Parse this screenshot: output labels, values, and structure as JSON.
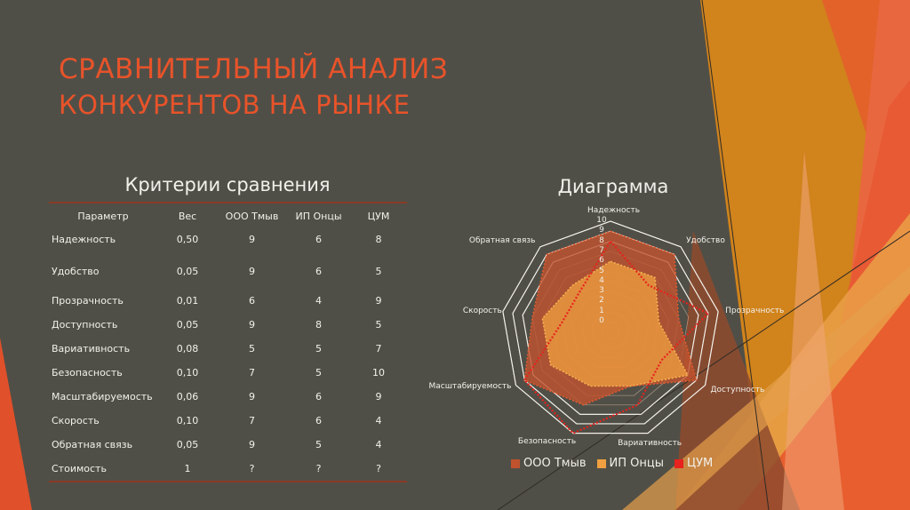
{
  "slide": {
    "title_line1": "СРАВНИТЕЛЬНЫЙ АНАЛИЗ",
    "title_line2": "КОНКУРЕНТОВ НА РЫНКЕ",
    "colors": {
      "background": "#504f47",
      "accent": "#e8532a",
      "rule": "#8a3a26"
    }
  },
  "table": {
    "heading": "Критерии сравнения",
    "columns": [
      "Параметр",
      "Вес",
      "ООО Тмыв",
      "ИП Онцы",
      "ЦУМ"
    ],
    "rows": [
      [
        "Надежность",
        "0,50",
        "9",
        "6",
        "8"
      ],
      [
        "Удобство",
        "0,05",
        "9",
        "6",
        "5"
      ],
      [
        "Прозрачность",
        "0,01",
        "6",
        "4",
        "9"
      ],
      [
        "Доступность",
        "0,05",
        "9",
        "8",
        "5"
      ],
      [
        "Вариативность",
        "0,08",
        "5",
        "5",
        "7"
      ],
      [
        "Безопасность",
        "0,10",
        "7",
        "5",
        "10"
      ],
      [
        "Масштабируемость",
        "0,06",
        "9",
        "6",
        "9"
      ],
      [
        "Скорость",
        "0,10",
        "7",
        "6",
        "4"
      ],
      [
        "Обратная связь",
        "0,05",
        "9",
        "5",
        "4"
      ],
      [
        "Стоимость",
        "1",
        "?",
        "?",
        "?"
      ]
    ]
  },
  "chart": {
    "heading": "Диаграмма"
  },
  "chart_data": {
    "type": "radar",
    "title": "Диаграмма",
    "categories": [
      "Надежность",
      "Удобство",
      "Прозрачность",
      "Доступность",
      "Вариативность",
      "Безопасность",
      "Масштабируемость",
      "Скорость",
      "Обратная связь"
    ],
    "series": [
      {
        "name": "ООО Тмыв",
        "values": [
          9,
          9,
          6,
          9,
          5,
          7,
          9,
          7,
          9
        ],
        "color": "#c0522e",
        "fill": true
      },
      {
        "name": "ИП Онцы",
        "values": [
          6,
          6,
          4,
          8,
          5,
          5,
          6,
          6,
          5
        ],
        "color": "#f0a040",
        "fill": true
      },
      {
        "name": "ЦУМ",
        "values": [
          8,
          5,
          9,
          5,
          7,
          10,
          9,
          4,
          4
        ],
        "color": "#e8221e",
        "fill": false
      }
    ],
    "ticks": [
      "0",
      "1",
      "2",
      "3",
      "4",
      "5",
      "6",
      "7",
      "8",
      "9",
      "10"
    ],
    "rlim": [
      0,
      10
    ],
    "grid": true,
    "legend_position": "bottom"
  }
}
